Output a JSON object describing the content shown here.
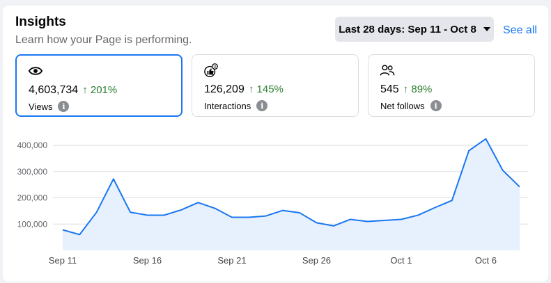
{
  "header": {
    "title": "Insights",
    "subtitle": "Learn how your Page is performing.",
    "date_range": "Last 28 days: Sep 11 - Oct 8",
    "see_all": "See all"
  },
  "metrics": [
    {
      "icon": "eye-icon",
      "value": "4,603,734",
      "change": "↑ 201%",
      "label": "Views"
    },
    {
      "icon": "thumbs-up-icon",
      "value": "126,209",
      "change": "↑ 145%",
      "label": "Interactions"
    },
    {
      "icon": "people-icon",
      "value": "545",
      "change": "↑ 89%",
      "label": "Net follows"
    }
  ],
  "colors": {
    "accent": "#1877f2",
    "positive": "#2e7d32",
    "fill": "#e7f0fd"
  },
  "chart_data": {
    "type": "area",
    "title": "",
    "xlabel": "",
    "ylabel": "",
    "ylim": [
      0,
      440000
    ],
    "yticks": [
      100000,
      200000,
      300000,
      400000
    ],
    "ytick_labels": [
      "100,000",
      "200,000",
      "300,000",
      "400,000"
    ],
    "x_labels": [
      {
        "index": 0,
        "label": "Sep 11"
      },
      {
        "index": 5,
        "label": "Sep 16"
      },
      {
        "index": 10,
        "label": "Sep 21"
      },
      {
        "index": 15,
        "label": "Sep 26"
      },
      {
        "index": 20,
        "label": "Oct 1"
      },
      {
        "index": 25,
        "label": "Oct 6"
      }
    ],
    "series": [
      {
        "name": "Views",
        "values": [
          78000,
          60000,
          145000,
          272000,
          145000,
          134000,
          134000,
          154000,
          182000,
          160000,
          126000,
          126000,
          131000,
          152000,
          143000,
          105000,
          93000,
          118000,
          110000,
          114000,
          118000,
          134000,
          163000,
          190000,
          380000,
          425000,
          305000,
          242000
        ]
      }
    ]
  }
}
